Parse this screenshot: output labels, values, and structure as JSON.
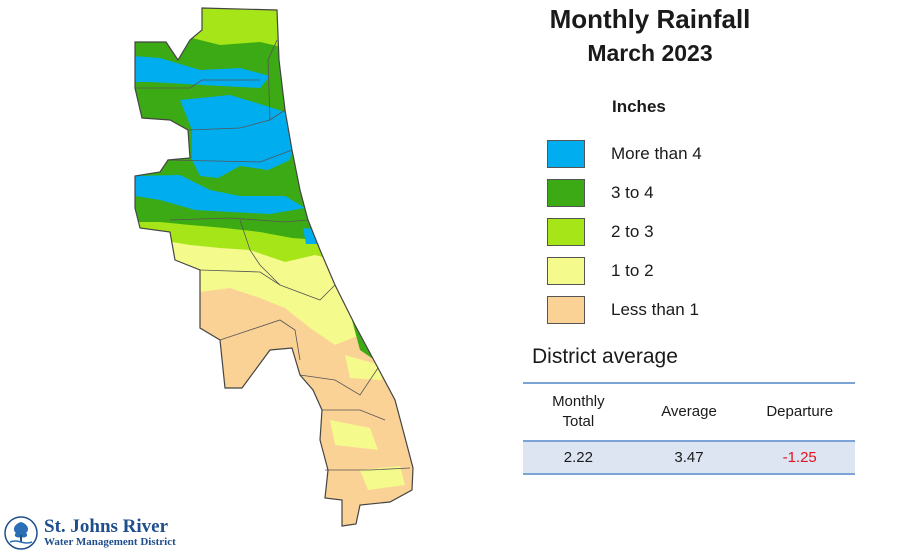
{
  "title": "Monthly Rainfall",
  "subtitle": "March 2023",
  "legend": {
    "units": "Inches",
    "items": [
      {
        "label": "More than 4",
        "color": "#00aeef"
      },
      {
        "label": "3 to 4",
        "color": "#3caa14"
      },
      {
        "label": "2 to 3",
        "color": "#a6e619"
      },
      {
        "label": "1 to 2",
        "color": "#f5fa8c"
      },
      {
        "label": "Less than 1",
        "color": "#fad296"
      }
    ]
  },
  "district_average": {
    "title": "District average",
    "headers": [
      "Monthly\nTotal",
      "Average",
      "Departure"
    ],
    "values": [
      "2.22",
      "3.47",
      "-1.25"
    ],
    "departure_color": "#e0141e"
  },
  "logo": {
    "line1": "St. Johns River",
    "line2": "Water Management District"
  }
}
